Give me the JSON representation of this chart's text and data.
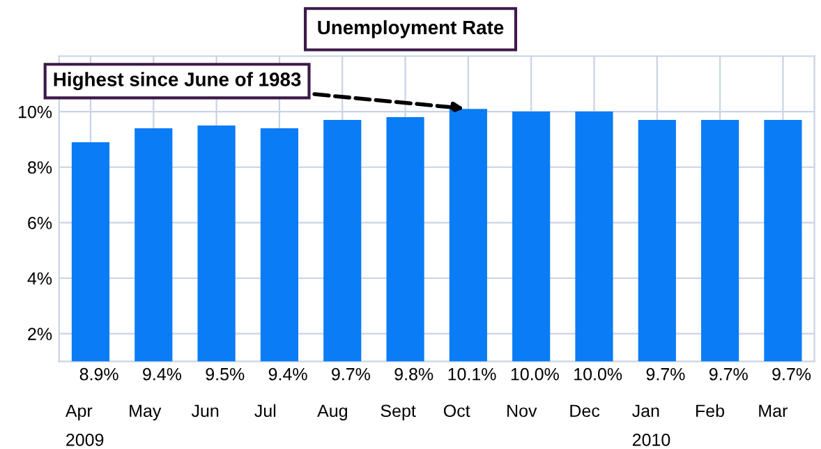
{
  "chart_data": {
    "type": "bar",
    "title": "Unemployment Rate",
    "categories": [
      "Apr",
      "May",
      "Jun",
      "Jul",
      "Aug",
      "Sept",
      "Oct",
      "Nov",
      "Dec",
      "Jan",
      "Feb",
      "Mar"
    ],
    "values": [
      8.9,
      9.4,
      9.5,
      9.4,
      9.7,
      9.8,
      10.1,
      10.0,
      10.0,
      9.7,
      9.7,
      9.7
    ],
    "value_labels": [
      "8.9%",
      "9.4%",
      "9.5%",
      "9.4%",
      "9.7%",
      "9.8%",
      "10.1%",
      "10.0%",
      "10.0%",
      "9.7%",
      "9.7%",
      "9.7%"
    ],
    "color": "#0a7cf5",
    "ylim": [
      1,
      12
    ],
    "yticks": [
      {
        "value": 2,
        "label": "2%"
      },
      {
        "value": 4,
        "label": "4%"
      },
      {
        "value": 6,
        "label": "6%"
      },
      {
        "value": 8,
        "label": "8%"
      },
      {
        "value": 10,
        "label": "10%"
      }
    ],
    "grid": true,
    "annotations": [
      {
        "text": "Highest since June of 1983",
        "x": "Oct",
        "y": 10.1
      },
      "2009",
      "2010"
    ]
  }
}
